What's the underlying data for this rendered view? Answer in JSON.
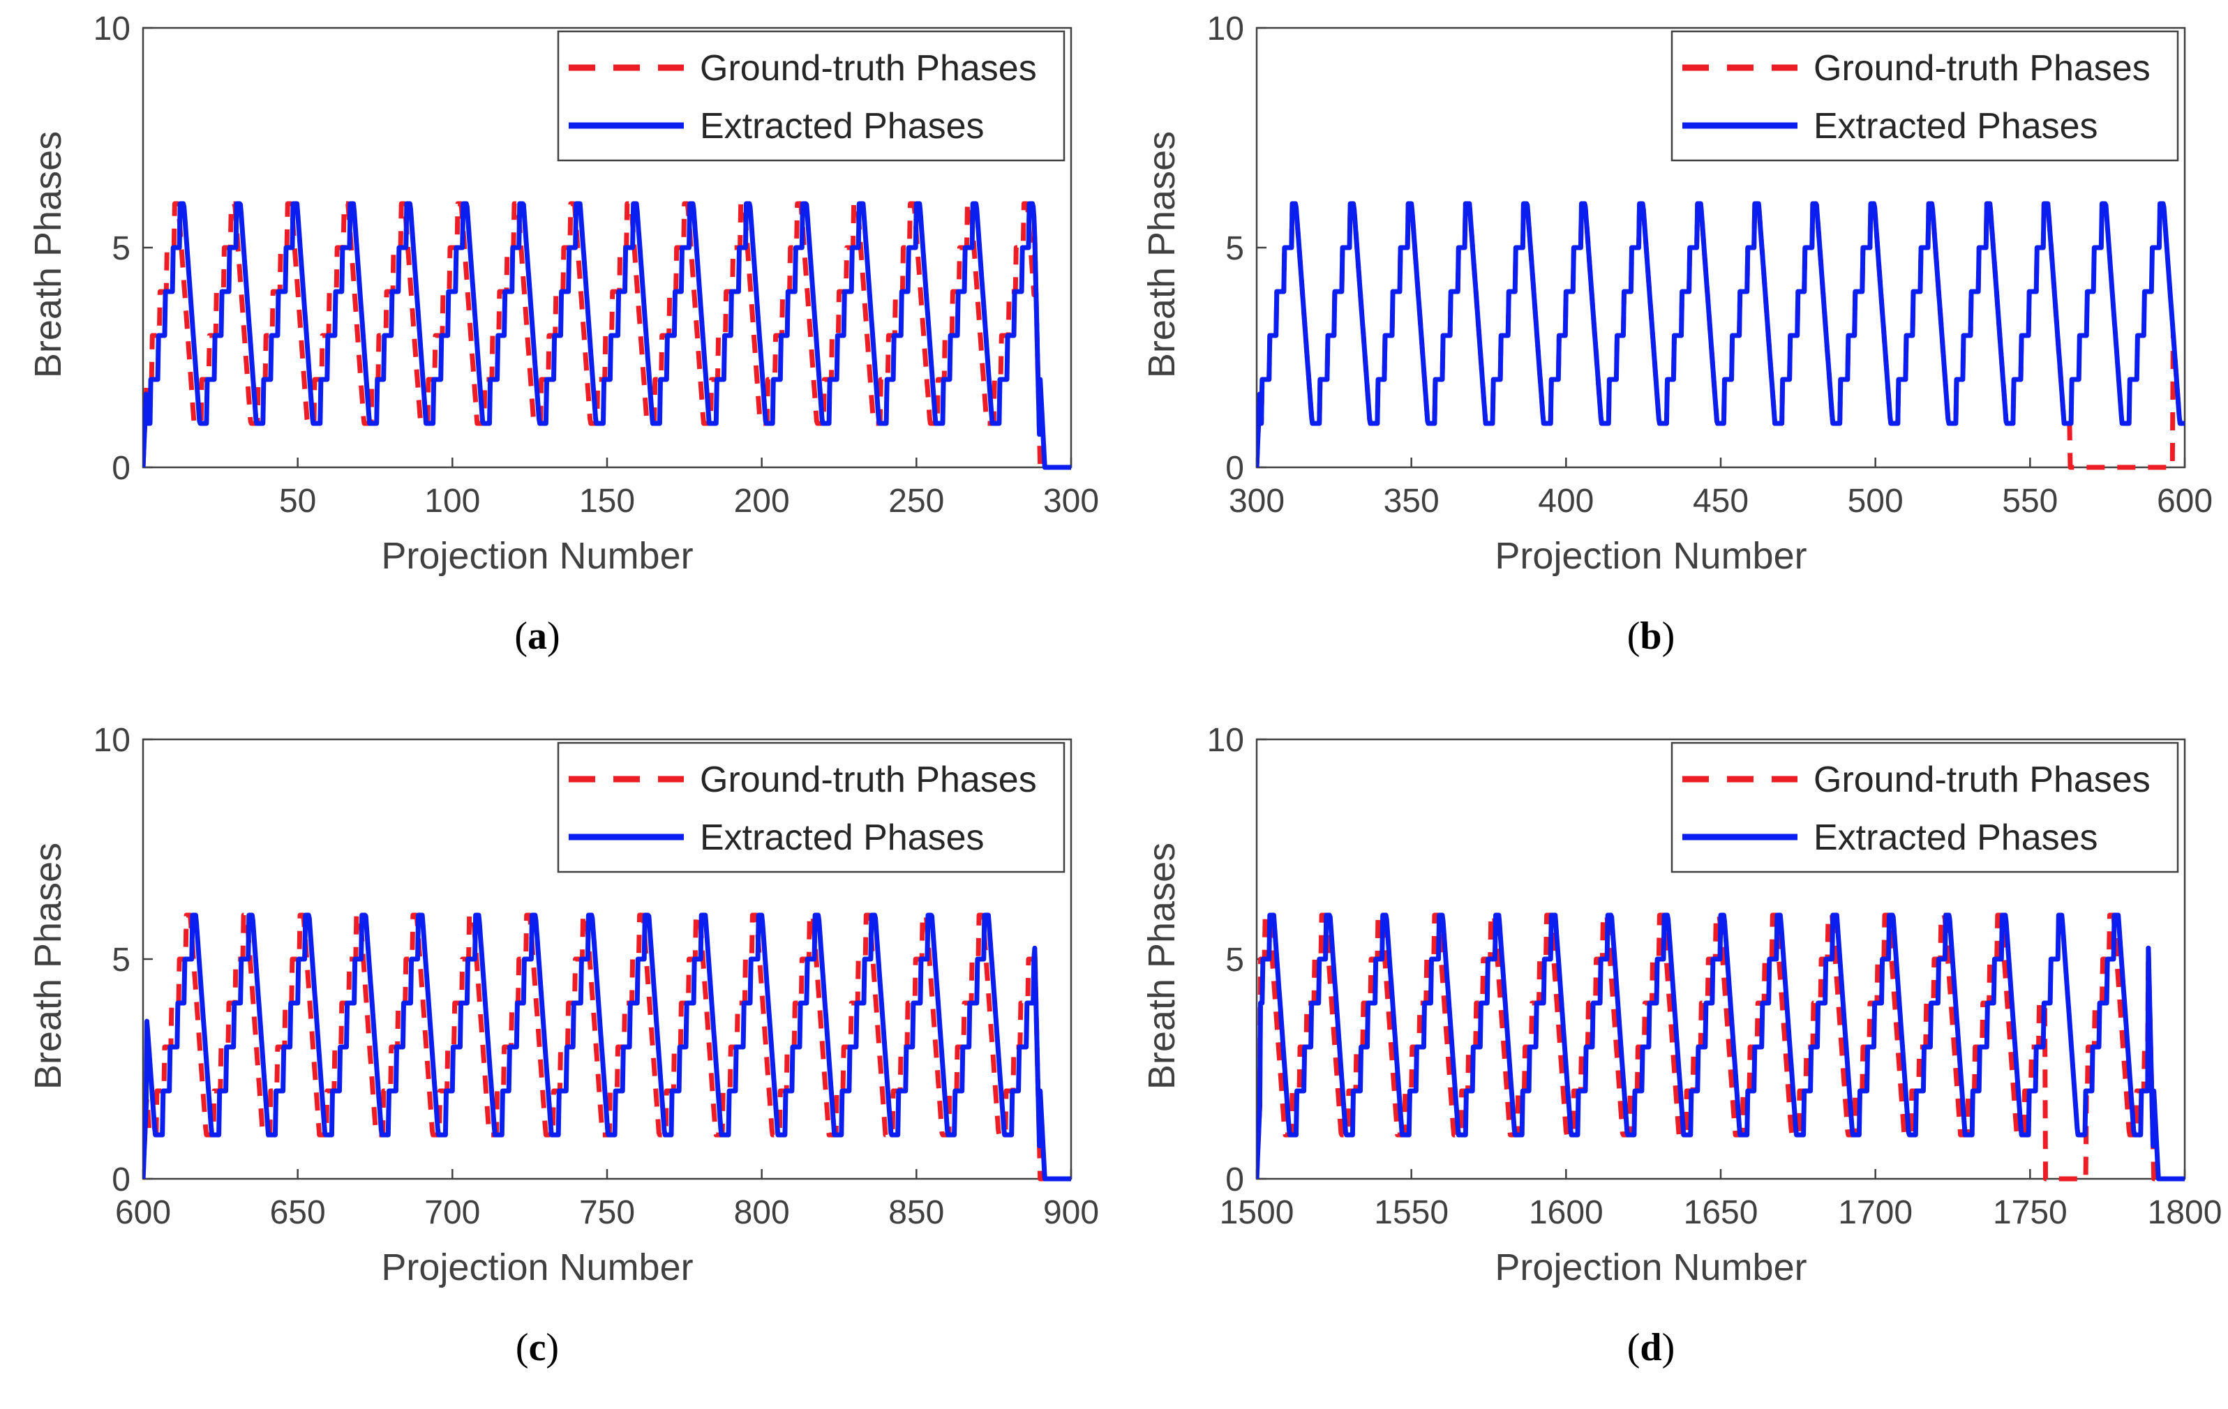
{
  "legend": {
    "ground_truth": "Ground-truth Phases",
    "extracted": "Extracted Phases"
  },
  "colors": {
    "ground_truth": "#ee1c24",
    "extracted": "#0a1ef0",
    "axis": "#404040"
  },
  "chart_data": [
    {
      "type": "line",
      "caption_letter": "a",
      "xlabel": "Projection Number",
      "ylabel": "Breath Phases",
      "xlim": [
        0,
        300
      ],
      "ylim": [
        0,
        10
      ],
      "xticks": [
        50,
        100,
        150,
        200,
        250,
        300
      ],
      "yticks": [
        0,
        5,
        10
      ],
      "cycle_length": 18.3,
      "ground_truth_offset": -1.8,
      "extracted_offset": 0,
      "signal_end": 288,
      "ground_truth_dropouts": [],
      "series": [
        {
          "name": "Ground-truth Phases",
          "style": "dashed",
          "pattern": "6-level sawtooth (1,2,3,4,5,6), ~18.3 projections per cycle, leading extracted phases slightly"
        },
        {
          "name": "Extracted Phases",
          "style": "solid",
          "pattern": "6-level sawtooth (1,2,3,4,5,6), ~18.3 projections per cycle, falls to 0 after projection 290"
        }
      ]
    },
    {
      "type": "line",
      "caption_letter": "b",
      "xlabel": "Projection Number",
      "ylabel": "Breath Phases",
      "xlim": [
        300,
        600
      ],
      "ylim": [
        0,
        10
      ],
      "xticks": [
        300,
        350,
        400,
        450,
        500,
        550,
        600
      ],
      "yticks": [
        0,
        5,
        10
      ],
      "cycle_length": 18.7,
      "ground_truth_offset": 0,
      "extracted_offset": 0,
      "signal_end": 601,
      "ground_truth_dropouts": [
        [
          563,
          596
        ]
      ],
      "series": [
        {
          "name": "Ground-truth Phases",
          "style": "dashed",
          "pattern": "6-level sawtooth (1..6), largely coincident with extracted; drops to 0 near projections 563-596"
        },
        {
          "name": "Extracted Phases",
          "style": "solid",
          "pattern": "6-level sawtooth (1..6), ~18.7 projections per cycle"
        }
      ]
    },
    {
      "type": "line",
      "caption_letter": "c",
      "xlabel": "Projection Number",
      "ylabel": "Breath Phases",
      "xlim": [
        600,
        900
      ],
      "ylim": [
        0,
        10
      ],
      "xticks": [
        600,
        650,
        700,
        750,
        800,
        850,
        900
      ],
      "yticks": [
        0,
        5,
        10
      ],
      "cycle_length": 18.3,
      "ground_truth_offset": -1.8,
      "extracted_offset": 0,
      "signal_end": 888,
      "ground_truth_dropouts": [],
      "series": [
        {
          "name": "Ground-truth Phases",
          "style": "dashed",
          "pattern": "6-level sawtooth (1..6), leading extracted phases slightly"
        },
        {
          "name": "Extracted Phases",
          "style": "solid",
          "pattern": "6-level sawtooth (1..6), ~18.3 projections per cycle, falls to 0 after projection 890"
        }
      ]
    },
    {
      "type": "line",
      "caption_letter": "d",
      "xlabel": "Projection Number",
      "ylabel": "Breath Phases",
      "xlim": [
        1500,
        1800
      ],
      "ylim": [
        0,
        10
      ],
      "xticks": [
        1500,
        1550,
        1600,
        1650,
        1700,
        1750,
        1800
      ],
      "yticks": [
        0,
        5,
        10
      ],
      "cycle_length": 18.2,
      "ground_truth_offset": -1.5,
      "extracted_offset": 0,
      "signal_end": 1788,
      "ground_truth_dropouts": [
        [
          1755,
          1768
        ]
      ],
      "series": [
        {
          "name": "Ground-truth Phases",
          "style": "dashed",
          "pattern": "6-level sawtooth (1..6), drops to 0 near projections 1755-1768"
        },
        {
          "name": "Extracted Phases",
          "style": "solid",
          "pattern": "6-level sawtooth (1..6), ~18.2 projections per cycle, falls to 0 after projection 1790"
        }
      ]
    }
  ]
}
